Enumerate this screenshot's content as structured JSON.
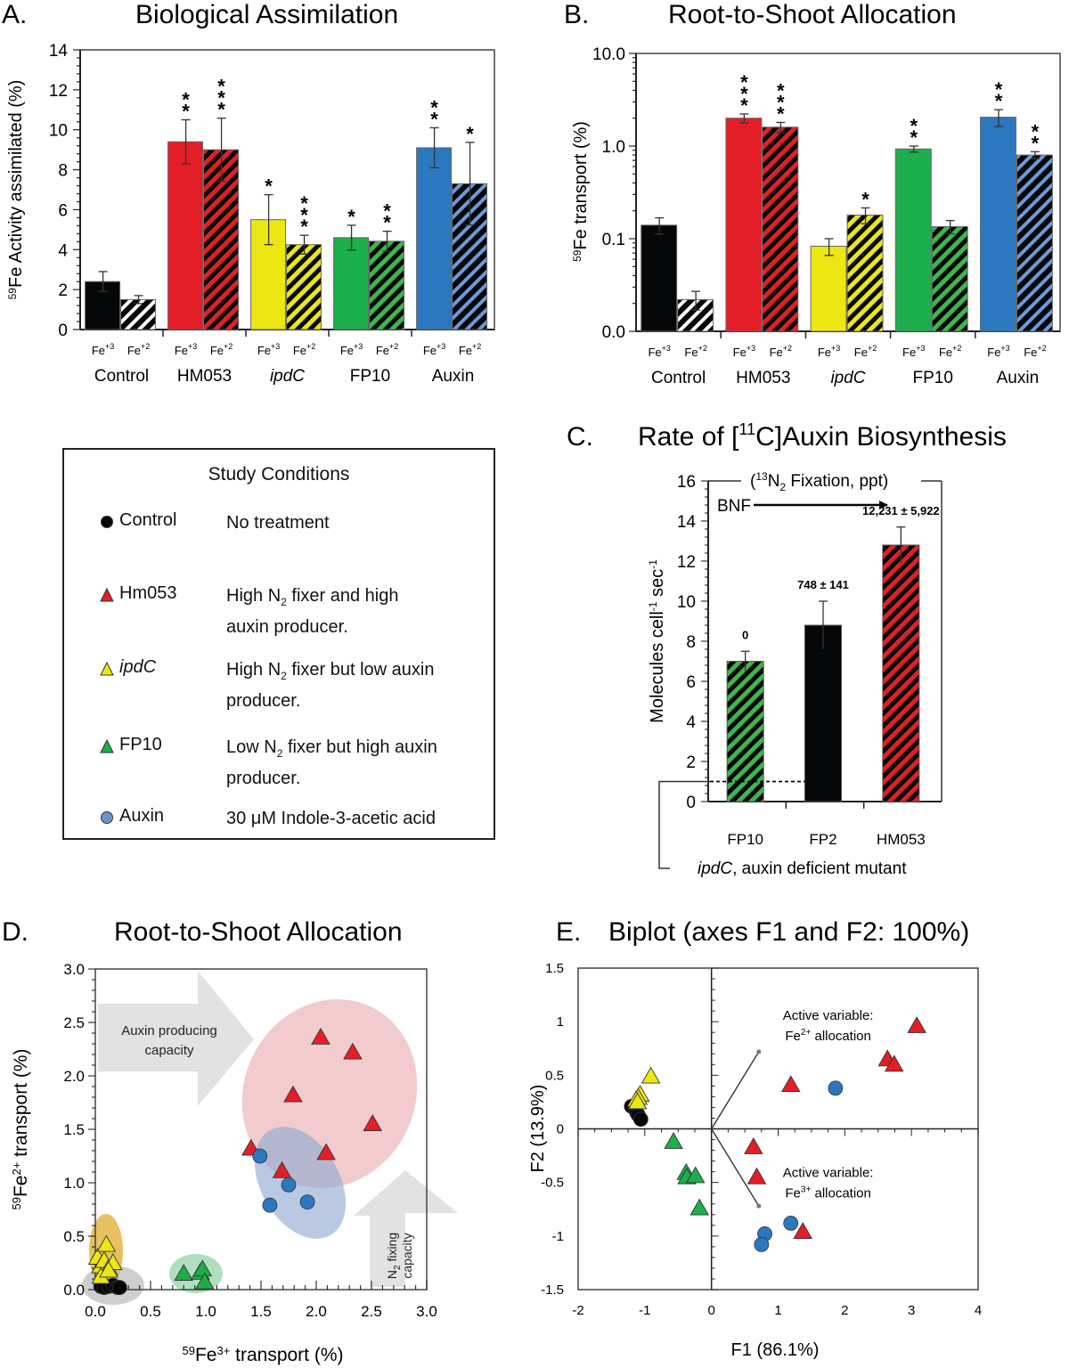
{
  "figure": {
    "colors": {
      "control": "#050708",
      "hm053": "#e41e26",
      "ipdc": "#ece613",
      "fp10": "#1caf4b",
      "auxin": "#2b78bf",
      "auxin_hatch": "#6b9ad8",
      "ellipse_red": "#e8a9ad",
      "ellipse_blue": "#8ea8cf",
      "ellipse_yellow": "#e0ab2b",
      "ellipse_green": "#8fd1a4",
      "ellipse_gray": "#b9b9b9",
      "arrow_gray": "#e2e2e2"
    }
  },
  "chart_data": [
    {
      "id": "A",
      "panel_label": "A.",
      "type": "bar",
      "title": "Biological Assimilation",
      "ylabel_sup": "59",
      "ylabel": "Fe Activity assimilated (%)",
      "ylim": [
        0,
        14
      ],
      "yticks": [
        "0",
        "2",
        "4",
        "6",
        "8",
        "10",
        "12",
        "14"
      ],
      "yscale": "linear",
      "groups": [
        "Control",
        "HM053",
        "ipdC",
        "FP10",
        "Auxin"
      ],
      "group_italic": [
        false,
        false,
        true,
        false,
        false
      ],
      "sub_labels": [
        "Fe+3",
        "Fe+2"
      ],
      "series": [
        {
          "name": "Fe+3",
          "pattern": "solid",
          "values": [
            2.4,
            9.4,
            5.5,
            4.6,
            9.1
          ],
          "errors": [
            0.5,
            1.1,
            1.25,
            0.62,
            1.0
          ],
          "stars": [
            "",
            "**",
            "*",
            "*",
            "**"
          ]
        },
        {
          "name": "Fe+2",
          "pattern": "hatched",
          "values": [
            1.5,
            9.0,
            4.25,
            4.42,
            7.3
          ],
          "errors": [
            0.2,
            1.58,
            0.47,
            0.5,
            2.07
          ],
          "stars": [
            "",
            "***",
            "***",
            "**",
            "*"
          ]
        }
      ]
    },
    {
      "id": "B",
      "panel_label": "B.",
      "type": "bar",
      "title": "Root-to-Shoot Allocation",
      "ylabel_sup": "59",
      "ylabel": "Fe transport (%)",
      "yscale": "log",
      "ylim": [
        0.01,
        10
      ],
      "yticks": [
        "0.0",
        "0.1",
        "1.0",
        "10.0"
      ],
      "groups": [
        "Control",
        "HM053",
        "ipdC",
        "FP10",
        "Auxin"
      ],
      "group_italic": [
        false,
        false,
        true,
        false,
        false
      ],
      "sub_labels": [
        "Fe+3",
        "Fe+2"
      ],
      "series": [
        {
          "name": "Fe+3",
          "pattern": "solid",
          "values": [
            0.14,
            2.0,
            0.083,
            0.93,
            2.05
          ],
          "errors": [
            0.028,
            0.22,
            0.017,
            0.07,
            0.42
          ],
          "stars": [
            "",
            "***",
            "",
            "**",
            "**"
          ]
        },
        {
          "name": "Fe+2",
          "pattern": "hatched",
          "values": [
            0.022,
            1.6,
            0.18,
            0.135,
            0.8
          ],
          "errors": [
            0.005,
            0.2,
            0.035,
            0.022,
            0.07
          ],
          "stars": [
            "",
            "***",
            "*",
            "",
            "**"
          ]
        }
      ]
    },
    {
      "id": "C",
      "panel_label": "C.",
      "type": "bar",
      "title_pre": "Rate of [",
      "title_sup": "11",
      "title_post": "C]Auxin Biosynthesis",
      "ylabel": "Molecules cell-1 sec-1",
      "ylim": [
        0,
        16
      ],
      "yticks": [
        "0",
        "2",
        "4",
        "6",
        "8",
        "10",
        "12",
        "14",
        "16"
      ],
      "categories": [
        "FP10",
        "FP2",
        "HM053"
      ],
      "values": [
        7.0,
        8.8,
        12.8
      ],
      "errors": [
        0.5,
        1.2,
        0.9
      ],
      "patterns": [
        "hatched-green",
        "solid-black",
        "hatched-red"
      ],
      "data_labels": [
        "0",
        "748 ± 141",
        "12,231 ± 5,922"
      ],
      "bracket_label_pre": "(",
      "bracket_label_sup": "13",
      "bracket_label_mid": "N",
      "bracket_label_sub": "2",
      "bracket_label_post": " Fixation, ppt)",
      "arrow_label": "BNF",
      "footnote_italic": "ipdC",
      "footnote": ", auxin deficient mutant"
    },
    {
      "id": "D",
      "panel_label": "D.",
      "type": "scatter",
      "title": "Root-to-Shoot Allocation",
      "xlabel": "Fe3+ transport (%)",
      "ylabel": "Fe2+ transport (%)",
      "xlim": [
        0,
        3
      ],
      "ylim": [
        0,
        3
      ],
      "xticks": [
        "0.0",
        "0.5",
        "1.0",
        "1.5",
        "2.0",
        "2.5",
        "3.0"
      ],
      "yticks": [
        "0.0",
        "0.5",
        "1.0",
        "1.5",
        "2.0",
        "2.5",
        "3.0"
      ],
      "annotations": [
        "Auxin producing capacity",
        "N2 fixing capacity"
      ],
      "series": [
        {
          "name": "Control",
          "marker": "circle",
          "points": [
            [
              0.05,
              0.03
            ],
            [
              0.08,
              0.02
            ],
            [
              0.12,
              0.03
            ],
            [
              0.16,
              0.04
            ],
            [
              0.2,
              0.02
            ],
            [
              0.22,
              0.02
            ]
          ]
        },
        {
          "name": "ipdC",
          "marker": "triangle",
          "points": [
            [
              0.02,
              0.3
            ],
            [
              0.05,
              0.22
            ],
            [
              0.1,
              0.42
            ],
            [
              0.08,
              0.27
            ],
            [
              0.12,
              0.2
            ],
            [
              0.16,
              0.25
            ],
            [
              0.05,
              0.12
            ],
            [
              0.12,
              0.18
            ]
          ]
        },
        {
          "name": "FP10",
          "marker": "triangle",
          "points": [
            [
              0.8,
              0.15
            ],
            [
              0.95,
              0.16
            ],
            [
              0.97,
              0.19
            ],
            [
              0.99,
              0.07
            ]
          ]
        },
        {
          "name": "HM053",
          "marker": "triangle",
          "points": [
            [
              2.04,
              2.36
            ],
            [
              2.33,
              2.22
            ],
            [
              1.79,
              1.82
            ],
            [
              2.51,
              1.55
            ],
            [
              1.41,
              1.32
            ],
            [
              2.09,
              1.28
            ],
            [
              1.69,
              1.11
            ]
          ]
        },
        {
          "name": "Auxin",
          "marker": "circle",
          "points": [
            [
              1.49,
              1.25
            ],
            [
              1.75,
              0.98
            ],
            [
              1.58,
              0.79
            ],
            [
              1.92,
              0.82
            ]
          ]
        }
      ]
    },
    {
      "id": "E",
      "panel_label": "E.",
      "type": "scatter",
      "title": "Biplot (axes F1 and F2: 100%)",
      "xlabel": "F1 (86.1%)",
      "ylabel": "F2 (13.9%)",
      "xlim": [
        -2,
        4
      ],
      "ylim": [
        -1.5,
        1.5
      ],
      "xticks": [
        "-2",
        "-1",
        "0",
        "1",
        "2",
        "3",
        "4"
      ],
      "yticks": [
        "-1.5",
        "-1",
        "-0.5",
        "0",
        "0.5",
        "1",
        "1.5"
      ],
      "vectors": [
        {
          "label_line1": "Active variable:",
          "label_sup": "2+",
          "label_line2": "allocation",
          "end": [
            0.71,
            0.72
          ]
        },
        {
          "label_line1": "Active variable:",
          "label_sup": "3+",
          "label_line2": "allocation",
          "end": [
            0.71,
            -0.72
          ]
        }
      ],
      "series": [
        {
          "name": "Control",
          "marker": "circle",
          "points": [
            [
              -1.2,
              0.21
            ],
            [
              -1.15,
              0.19
            ],
            [
              -1.12,
              0.15
            ],
            [
              -1.1,
              0.13
            ],
            [
              -1.06,
              0.09
            ]
          ]
        },
        {
          "name": "ipdC",
          "marker": "triangle",
          "points": [
            [
              -0.91,
              0.49
            ],
            [
              -1.07,
              0.32
            ],
            [
              -1.1,
              0.29
            ],
            [
              -1.13,
              0.27
            ],
            [
              -1.11,
              0.25
            ]
          ]
        },
        {
          "name": "FP10",
          "marker": "triangle",
          "points": [
            [
              -0.57,
              -0.12
            ],
            [
              -0.38,
              -0.41
            ],
            [
              -0.37,
              -0.45
            ],
            [
              -0.24,
              -0.44
            ],
            [
              -0.18,
              -0.74
            ]
          ]
        },
        {
          "name": "HM053",
          "marker": "triangle",
          "points": [
            [
              3.08,
              0.96
            ],
            [
              2.64,
              0.65
            ],
            [
              2.74,
              0.6
            ],
            [
              1.19,
              0.41
            ],
            [
              0.63,
              -0.17
            ],
            [
              0.68,
              -0.45
            ],
            [
              1.37,
              -0.96
            ]
          ]
        },
        {
          "name": "Auxin",
          "marker": "circle",
          "points": [
            [
              1.86,
              0.38
            ],
            [
              1.19,
              -0.88
            ],
            [
              0.8,
              -0.98
            ],
            [
              0.75,
              -1.08
            ]
          ]
        }
      ]
    }
  ],
  "legend": {
    "title": "Study Conditions",
    "items": [
      {
        "name": "Control",
        "italic": false,
        "marker": "circle",
        "color": "#050708",
        "desc_lines": [
          "No treatment"
        ]
      },
      {
        "name": "Hm053",
        "italic": false,
        "marker": "triangle",
        "color": "#e41e26",
        "desc_lines": [
          "High N2 fixer and high",
          "auxin producer."
        ]
      },
      {
        "name": "ipdC",
        "italic": true,
        "marker": "triangle",
        "color": "#ece613",
        "desc_lines": [
          "High N2 fixer but low auxin",
          "producer."
        ]
      },
      {
        "name": "FP10",
        "italic": false,
        "marker": "triangle",
        "color": "#1caf4b",
        "desc_lines": [
          "Low N2 fixer but high auxin",
          "producer."
        ]
      },
      {
        "name": "Auxin",
        "italic": false,
        "marker": "circle",
        "color": "#6f93c9",
        "desc_lines": [
          "30 μM Indole-3-acetic acid"
        ]
      }
    ]
  }
}
